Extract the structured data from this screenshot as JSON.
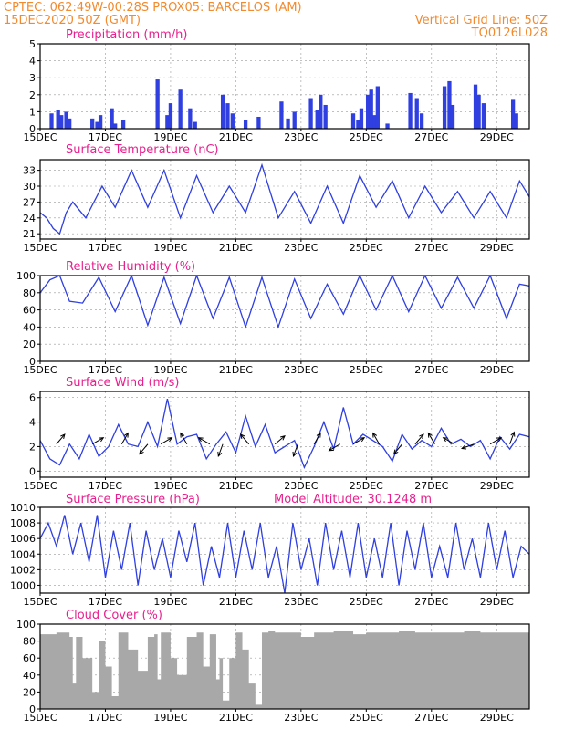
{
  "header": {
    "line1_left": "CPTEC:   062:49W-00:28S   PROX05: BARCELOS (AM)",
    "line2_left": "15DEC2020 50Z (GMT)",
    "line2_right": "Vertical Grid Line: 50Z",
    "line3_right": "TQ0126L028"
  },
  "colors": {
    "header": "#f28a2e",
    "panel_title": "#e8208f",
    "series": "#2f3fe0",
    "cloud": "#a8a8a8"
  },
  "x_axis": {
    "tick_labels": [
      "15DEC",
      "17DEC",
      "19DEC",
      "21DEC",
      "23DEC",
      "25DEC",
      "27DEC",
      "29DEC"
    ],
    "range_days": [
      0,
      15
    ],
    "tick_days": [
      0,
      2,
      4,
      6,
      8,
      10,
      12,
      14
    ],
    "grid": "dashed"
  },
  "chart_data": [
    {
      "type": "bar",
      "title": "Precipitation (mm/h)",
      "ylim": [
        0,
        5
      ],
      "yticks": [
        "0",
        "1",
        "2",
        "3",
        "4",
        "5"
      ],
      "x_days": [
        0.35,
        0.55,
        0.65,
        0.8,
        0.9,
        1.6,
        1.75,
        1.85,
        2.2,
        2.3,
        2.55,
        3.6,
        3.9,
        4.0,
        4.3,
        4.6,
        4.75,
        5.6,
        5.75,
        5.9,
        6.3,
        6.7,
        7.4,
        7.6,
        7.8,
        8.3,
        8.5,
        8.6,
        8.75,
        9.6,
        9.75,
        9.85,
        10.05,
        10.15,
        10.25,
        10.35,
        10.65,
        11.35,
        11.55,
        11.7,
        12.4,
        12.55,
        12.65,
        13.35,
        13.45,
        13.6,
        14.5,
        14.6
      ],
      "values": [
        0.9,
        1.1,
        0.8,
        1.0,
        0.6,
        0.6,
        0.4,
        0.8,
        1.2,
        0.3,
        0.5,
        2.9,
        0.8,
        1.5,
        2.3,
        1.2,
        0.4,
        2.0,
        1.5,
        0.9,
        0.5,
        0.7,
        1.6,
        0.6,
        1.0,
        1.8,
        1.1,
        2.0,
        1.4,
        0.9,
        0.5,
        1.2,
        2.0,
        2.3,
        0.8,
        2.5,
        0.3,
        2.1,
        1.8,
        0.9,
        2.5,
        2.8,
        1.4,
        2.6,
        2.0,
        1.5,
        1.7,
        0.9
      ]
    },
    {
      "type": "line",
      "title": "Surface Temperature (nC)",
      "ylim": [
        20,
        35
      ],
      "yticks": [
        "21",
        "24",
        "27",
        "30",
        "33"
      ],
      "x_days": [
        0,
        0.2,
        0.4,
        0.6,
        0.8,
        1.0,
        1.4,
        1.9,
        2.3,
        2.8,
        3.3,
        3.8,
        4.3,
        4.8,
        5.3,
        5.8,
        6.3,
        6.8,
        7.3,
        7.8,
        8.3,
        8.8,
        9.3,
        9.8,
        10.3,
        10.8,
        11.3,
        11.8,
        12.3,
        12.8,
        13.3,
        13.8,
        14.3,
        14.7,
        15.0
      ],
      "values": [
        25,
        24,
        22,
        21,
        25,
        27,
        24,
        30,
        26,
        33,
        26,
        33,
        24,
        32,
        25,
        30,
        25,
        34,
        24,
        29,
        23,
        30,
        23,
        32,
        26,
        31,
        24,
        30,
        25,
        29,
        24,
        29,
        24,
        31,
        28
      ]
    },
    {
      "type": "line",
      "title": "Relative Humidity (%)",
      "ylim": [
        0,
        100
      ],
      "yticks": [
        "0",
        "20",
        "40",
        "60",
        "80",
        "100"
      ],
      "x_days": [
        0,
        0.3,
        0.6,
        0.9,
        1.3,
        1.8,
        2.3,
        2.8,
        3.3,
        3.8,
        4.3,
        4.8,
        5.3,
        5.8,
        6.3,
        6.8,
        7.3,
        7.8,
        8.3,
        8.8,
        9.3,
        9.8,
        10.3,
        10.8,
        11.3,
        11.8,
        12.3,
        12.8,
        13.3,
        13.8,
        14.3,
        14.7,
        15.0
      ],
      "values": [
        80,
        95,
        100,
        70,
        68,
        98,
        58,
        100,
        42,
        98,
        44,
        100,
        50,
        98,
        40,
        98,
        40,
        96,
        50,
        90,
        55,
        100,
        60,
        100,
        58,
        100,
        62,
        98,
        62,
        100,
        50,
        90,
        88
      ]
    },
    {
      "type": "line",
      "title": "Surface Wind (m/s)",
      "ylim": [
        -0.5,
        6.5
      ],
      "yticks": [
        "0",
        "2",
        "4",
        "6"
      ],
      "x_days": [
        0,
        0.3,
        0.6,
        0.9,
        1.2,
        1.5,
        1.8,
        2.1,
        2.4,
        2.7,
        3.0,
        3.3,
        3.6,
        3.9,
        4.2,
        4.5,
        4.8,
        5.1,
        5.4,
        5.7,
        6.0,
        6.3,
        6.6,
        6.9,
        7.2,
        7.5,
        7.8,
        8.1,
        8.4,
        8.7,
        9.0,
        9.3,
        9.6,
        9.9,
        10.2,
        10.5,
        10.8,
        11.1,
        11.4,
        11.7,
        12.0,
        12.3,
        12.6,
        12.9,
        13.2,
        13.5,
        13.8,
        14.1,
        14.4,
        14.7,
        15.0
      ],
      "values": [
        2.5,
        1.0,
        0.5,
        2.2,
        1.0,
        3.0,
        1.2,
        2.0,
        3.8,
        2.2,
        2.0,
        4.0,
        2.0,
        5.9,
        2.2,
        2.8,
        3.0,
        1.0,
        2.2,
        3.2,
        1.5,
        4.5,
        2.0,
        3.8,
        1.5,
        2.0,
        2.5,
        0.3,
        2.0,
        4.0,
        1.8,
        5.2,
        2.2,
        3.0,
        2.5,
        2.0,
        0.8,
        3.0,
        1.8,
        2.5,
        2.0,
        3.5,
        2.2,
        2.6,
        2.0,
        2.5,
        1.0,
        2.8,
        1.8,
        3.0,
        2.8
      ],
      "arrow_x_days": [
        0.5,
        1.6,
        2.5,
        3.3,
        3.7,
        4.5,
        5.2,
        5.6,
        6.4,
        7.2,
        7.9,
        8.4,
        9.2,
        9.6,
        10.4,
        11.1,
        11.5,
        12.1,
        12.7,
        13.3,
        13.8,
        14.4
      ],
      "arrow_dir_deg": [
        40,
        60,
        30,
        220,
        60,
        330,
        300,
        200,
        320,
        50,
        200,
        30,
        240,
        60,
        330,
        220,
        40,
        330,
        300,
        250,
        60,
        20
      ]
    },
    {
      "type": "line",
      "title": "Surface Pressure (hPa)",
      "annotation": "Model Altitude: 30.1248 m",
      "ylim": [
        999,
        1010
      ],
      "yticks": [
        "1000",
        "1002",
        "1004",
        "1006",
        "1008",
        "1010"
      ],
      "x_days": [
        0,
        0.25,
        0.5,
        0.75,
        1.0,
        1.25,
        1.5,
        1.75,
        2.0,
        2.25,
        2.5,
        2.75,
        3.0,
        3.25,
        3.5,
        3.75,
        4.0,
        4.25,
        4.5,
        4.75,
        5.0,
        5.25,
        5.5,
        5.75,
        6.0,
        6.25,
        6.5,
        6.75,
        7.0,
        7.25,
        7.5,
        7.75,
        8.0,
        8.25,
        8.5,
        8.75,
        9.0,
        9.25,
        9.5,
        9.75,
        10.0,
        10.25,
        10.5,
        10.75,
        11.0,
        11.25,
        11.5,
        11.75,
        12.0,
        12.25,
        12.5,
        12.75,
        13.0,
        13.25,
        13.5,
        13.75,
        14.0,
        14.25,
        14.5,
        14.75,
        15.0
      ],
      "values": [
        1006,
        1008,
        1005,
        1009,
        1004,
        1008,
        1003,
        1009,
        1001,
        1007,
        1002,
        1008,
        1000,
        1007,
        1002,
        1006,
        1001,
        1007,
        1003,
        1008,
        1000,
        1005,
        1001,
        1008,
        1001,
        1007,
        1002,
        1008,
        1001,
        1005,
        999,
        1008,
        1002,
        1006,
        1000,
        1008,
        1002,
        1007,
        1001,
        1008,
        1001,
        1006,
        1001,
        1008,
        1000,
        1007,
        1002,
        1008,
        1001,
        1005,
        1001,
        1008,
        1002,
        1006,
        1001,
        1008,
        1002,
        1007,
        1001,
        1005,
        1004
      ]
    },
    {
      "type": "area",
      "title": "Cloud Cover (%)",
      "ylim": [
        0,
        100
      ],
      "yticks": [
        "0",
        "20",
        "40",
        "60",
        "80",
        "100"
      ],
      "x_days": [
        0,
        0.5,
        0.9,
        1.0,
        1.1,
        1.3,
        1.6,
        1.8,
        2.0,
        2.2,
        2.4,
        2.7,
        3.0,
        3.3,
        3.5,
        3.6,
        3.7,
        4.0,
        4.2,
        4.5,
        4.8,
        5.0,
        5.2,
        5.4,
        5.5,
        5.6,
        5.8,
        6.0,
        6.2,
        6.4,
        6.6,
        6.8,
        7.0,
        7.2,
        7.6,
        8.0,
        8.4,
        9.0,
        9.6,
        10.0,
        10.4,
        11.0,
        11.5,
        12.0,
        12.5,
        13.0,
        13.5,
        14.0,
        14.5,
        15.0
      ],
      "values": [
        88,
        90,
        85,
        30,
        85,
        60,
        20,
        80,
        50,
        15,
        90,
        70,
        45,
        85,
        88,
        35,
        90,
        60,
        40,
        85,
        90,
        50,
        88,
        35,
        60,
        10,
        60,
        90,
        70,
        30,
        5,
        90,
        92,
        90,
        90,
        85,
        90,
        92,
        88,
        90,
        90,
        92,
        90,
        90,
        90,
        92,
        90,
        90,
        90,
        90
      ]
    }
  ]
}
